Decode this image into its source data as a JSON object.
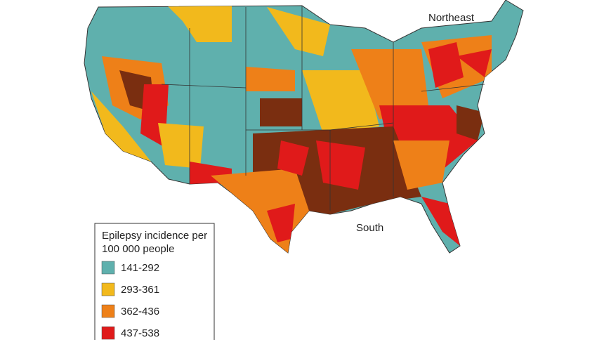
{
  "map": {
    "region_labels": [
      {
        "label": "Northeast"
      },
      {
        "label": "South"
      }
    ]
  },
  "legend": {
    "title_lines": [
      "Epilepsy incidence per",
      "100 000 people"
    ],
    "items": [
      {
        "label": "141-292",
        "color": "#5fb0ad"
      },
      {
        "label": "293-361",
        "color": "#f2b91c"
      },
      {
        "label": "362-436",
        "color": "#ee8018"
      },
      {
        "label": "437-538",
        "color": "#e01a1a"
      }
    ]
  }
}
